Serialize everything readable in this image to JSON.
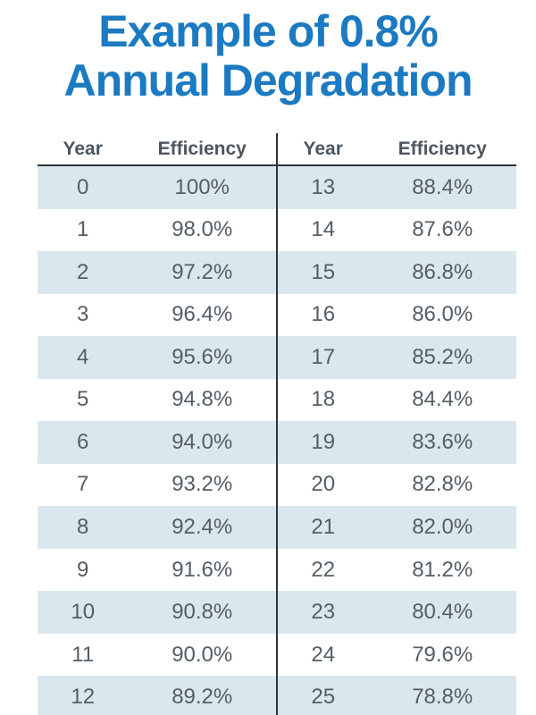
{
  "title": {
    "line1": "Example of 0.8%",
    "line2": "Annual Degradation"
  },
  "tables": [
    {
      "headers": [
        "Year",
        "Efficiency"
      ],
      "rows": [
        [
          "0",
          "100%"
        ],
        [
          "1",
          "98.0%"
        ],
        [
          "2",
          "97.2%"
        ],
        [
          "3",
          "96.4%"
        ],
        [
          "4",
          "95.6%"
        ],
        [
          "5",
          "94.8%"
        ],
        [
          "6",
          "94.0%"
        ],
        [
          "7",
          "93.2%"
        ],
        [
          "8",
          "92.4%"
        ],
        [
          "9",
          "91.6%"
        ],
        [
          "10",
          "90.8%"
        ],
        [
          "11",
          "90.0%"
        ],
        [
          "12",
          "89.2%"
        ]
      ]
    },
    {
      "headers": [
        "Year",
        "Efficiency"
      ],
      "rows": [
        [
          "13",
          "88.4%"
        ],
        [
          "14",
          "87.6%"
        ],
        [
          "15",
          "86.8%"
        ],
        [
          "16",
          "86.0%"
        ],
        [
          "17",
          "85.2%"
        ],
        [
          "18",
          "84.4%"
        ],
        [
          "19",
          "83.6%"
        ],
        [
          "20",
          "82.8%"
        ],
        [
          "21",
          "82.0%"
        ],
        [
          "22",
          "81.2%"
        ],
        [
          "23",
          "80.4%"
        ],
        [
          "24",
          "79.6%"
        ],
        [
          "25",
          "78.8%"
        ]
      ]
    }
  ],
  "chart_data": {
    "type": "table",
    "title": "Example of 0.8% Annual Degradation",
    "columns": [
      "Year",
      "Efficiency"
    ],
    "x": [
      0,
      1,
      2,
      3,
      4,
      5,
      6,
      7,
      8,
      9,
      10,
      11,
      12,
      13,
      14,
      15,
      16,
      17,
      18,
      19,
      20,
      21,
      22,
      23,
      24,
      25
    ],
    "values": [
      100,
      98.0,
      97.2,
      96.4,
      95.6,
      94.8,
      94.0,
      93.2,
      92.4,
      91.6,
      90.8,
      90.0,
      89.2,
      88.4,
      87.6,
      86.8,
      86.0,
      85.2,
      84.4,
      83.6,
      82.8,
      82.0,
      81.2,
      80.4,
      79.6,
      78.8
    ],
    "layout": "two side-by-side Year/Efficiency column pairs; years 0-12 left, 13-25 right; alternating row stripes"
  },
  "colors": {
    "title": "#1b7ac1",
    "stripe": "#dbe7ee",
    "rule": "#2e3439",
    "cell": "#545e66",
    "header": "#4d565e"
  }
}
